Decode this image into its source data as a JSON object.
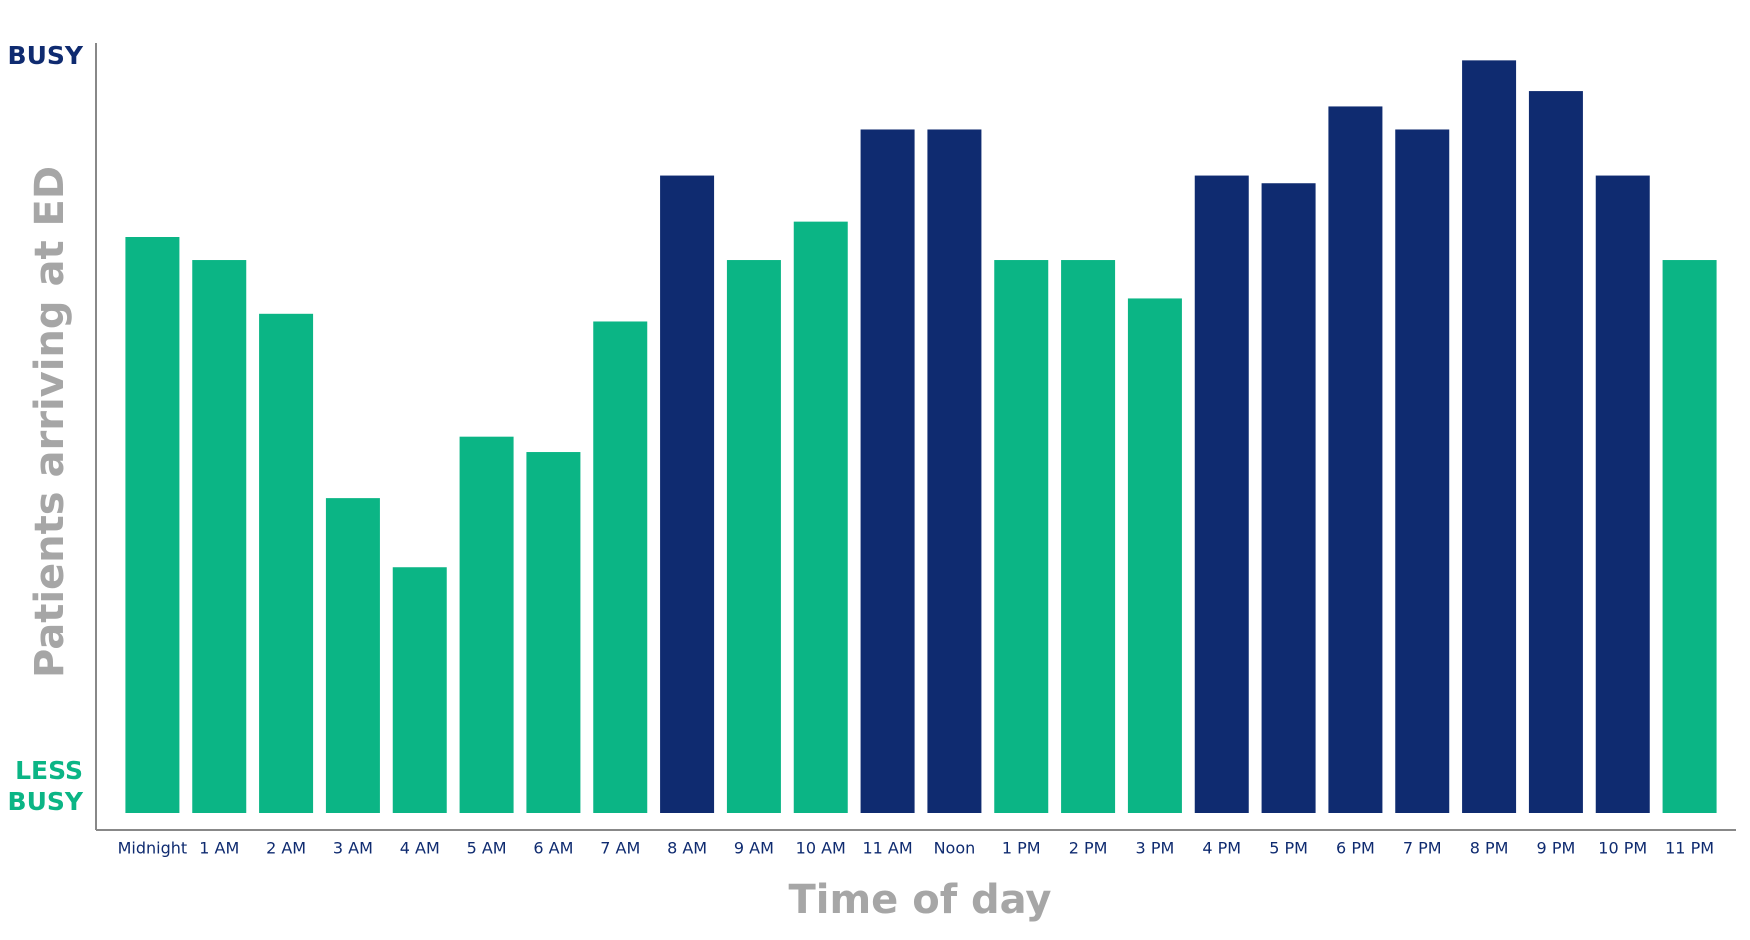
{
  "chart_data": {
    "type": "bar",
    "x_label": "Time of day",
    "y_label": "Patients arriving at ED",
    "y_top_label": "BUSY",
    "y_bottom_label": [
      "LESS",
      "BUSY"
    ],
    "categories": [
      "Midnight",
      "1 AM",
      "2 AM",
      "3 AM",
      "4 AM",
      "5 AM",
      "6 AM",
      "7 AM",
      "8 AM",
      "9 AM",
      "10 AM",
      "11 AM",
      "Noon",
      "1 PM",
      "2 PM",
      "3 PM",
      "4 PM",
      "5 PM",
      "6 PM",
      "7 PM",
      "8 PM",
      "9 PM",
      "10 PM",
      "11 PM"
    ],
    "values": [
      75,
      72,
      65,
      41,
      32,
      49,
      47,
      64,
      83,
      72,
      77,
      89,
      89,
      72,
      72,
      67,
      83,
      82,
      92,
      89,
      98,
      94,
      83,
      72
    ],
    "colors": [
      "#0bb585",
      "#0bb585",
      "#0bb585",
      "#0bb585",
      "#0bb585",
      "#0bb585",
      "#0bb585",
      "#0bb585",
      "#0f2b70",
      "#0bb585",
      "#0bb585",
      "#0f2b70",
      "#0f2b70",
      "#0bb585",
      "#0bb585",
      "#0bb585",
      "#0f2b70",
      "#0f2b70",
      "#0f2b70",
      "#0f2b70",
      "#0f2b70",
      "#0f2b70",
      "#0f2b70",
      "#0bb585"
    ],
    "top_label_color": "#0f2b70",
    "bottom_label_color": "#0bb585",
    "ylim": [
      0,
      100
    ]
  }
}
